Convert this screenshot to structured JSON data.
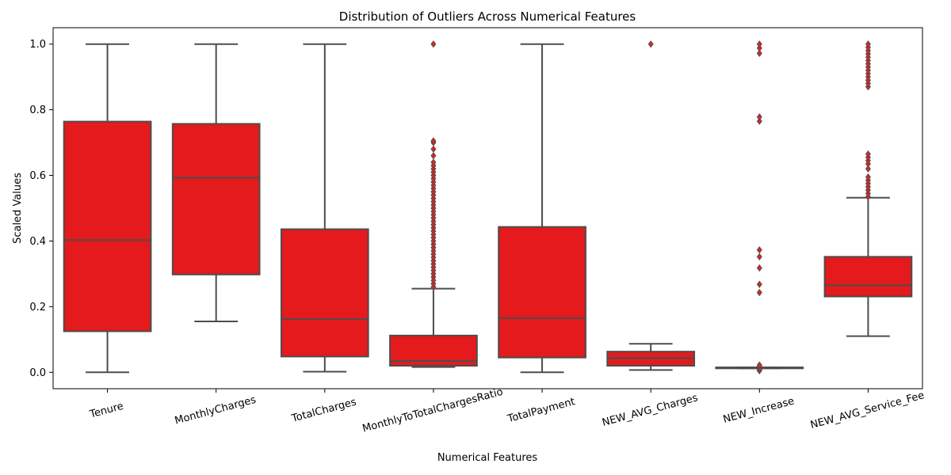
{
  "chart_data": {
    "type": "box",
    "title": "Distribution of Outliers Across Numerical Features",
    "xlabel": "Numerical Features",
    "ylabel": "Scaled Values",
    "ylim": [
      -0.05,
      1.05
    ],
    "yticks": [
      0.0,
      0.2,
      0.4,
      0.6,
      0.8,
      1.0
    ],
    "ytick_labels": [
      "0.0",
      "0.2",
      "0.4",
      "0.6",
      "0.8",
      "1.0"
    ],
    "grid": false,
    "box_color": "#e41a1c",
    "line_color": "#4d4d4d",
    "outlier_color": "#d62728",
    "categories": [
      "Tenure",
      "MonthlyCharges",
      "TotalCharges",
      "MonthlyToTotalChargesRatio",
      "TotalPayment",
      "NEW_AVG_Charges",
      "NEW_Increase",
      "NEW_AVG_Service_Fee"
    ],
    "boxes": [
      {
        "name": "Tenure",
        "whislo": 0.0,
        "q1": 0.125,
        "med": 0.403,
        "q3": 0.764,
        "whishi": 1.0,
        "fliers": []
      },
      {
        "name": "MonthlyCharges",
        "whislo": 0.155,
        "q1": 0.298,
        "med": 0.593,
        "q3": 0.757,
        "whishi": 1.0,
        "fliers": []
      },
      {
        "name": "TotalCharges",
        "whislo": 0.002,
        "q1": 0.048,
        "med": 0.162,
        "q3": 0.436,
        "whishi": 1.0,
        "fliers": []
      },
      {
        "name": "MonthlyToTotalChargesRatio",
        "whislo": 0.016,
        "q1": 0.02,
        "med": 0.035,
        "q3": 0.112,
        "whishi": 0.255,
        "fliers": [
          0.26,
          0.27,
          0.28,
          0.29,
          0.3,
          0.31,
          0.32,
          0.33,
          0.34,
          0.35,
          0.36,
          0.37,
          0.38,
          0.39,
          0.4,
          0.41,
          0.42,
          0.43,
          0.44,
          0.45,
          0.46,
          0.47,
          0.48,
          0.49,
          0.5,
          0.51,
          0.52,
          0.53,
          0.54,
          0.55,
          0.56,
          0.57,
          0.58,
          0.59,
          0.6,
          0.61,
          0.62,
          0.63,
          0.64,
          0.66,
          0.68,
          0.7,
          0.705,
          1.0
        ]
      },
      {
        "name": "TotalPayment",
        "whislo": 0.0,
        "q1": 0.045,
        "med": 0.165,
        "q3": 0.443,
        "whishi": 1.0,
        "fliers": []
      },
      {
        "name": "NEW_AVG_Charges",
        "whislo": 0.007,
        "q1": 0.02,
        "med": 0.043,
        "q3": 0.063,
        "whishi": 0.087,
        "fliers": [
          1.0
        ]
      },
      {
        "name": "NEW_Increase",
        "whislo": 0.012,
        "q1": 0.012,
        "med": 0.014,
        "q3": 0.015,
        "whishi": 0.015,
        "fliers": [
          0.005,
          0.008,
          0.01,
          0.018,
          0.022,
          0.243,
          0.268,
          0.318,
          0.352,
          0.373,
          0.765,
          0.778,
          0.972,
          0.988,
          1.0
        ]
      },
      {
        "name": "NEW_AVG_Service_Fee",
        "whislo": 0.11,
        "q1": 0.231,
        "med": 0.265,
        "q3": 0.352,
        "whishi": 0.532,
        "fliers": [
          0.535,
          0.545,
          0.555,
          0.565,
          0.575,
          0.585,
          0.595,
          0.62,
          0.635,
          0.645,
          0.655,
          0.665,
          0.87,
          0.88,
          0.89,
          0.9,
          0.91,
          0.92,
          0.93,
          0.94,
          0.95,
          0.96,
          0.97,
          0.98,
          0.99,
          1.0
        ]
      }
    ]
  }
}
